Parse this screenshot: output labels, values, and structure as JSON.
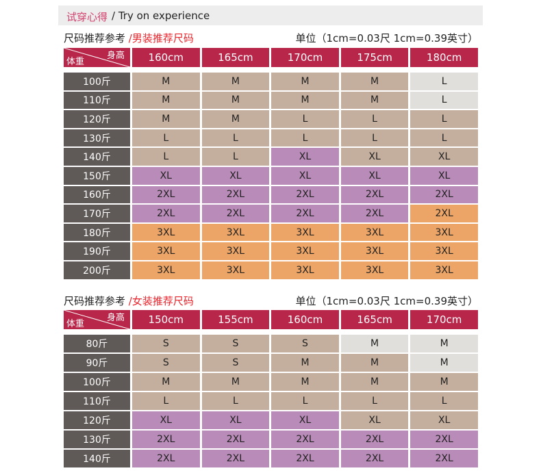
{
  "banner": {
    "cn": "试穿心得",
    "en": "/ Try on experience"
  },
  "men": {
    "title": "尺码推荐参考",
    "subtitle": "/男装推荐尺码",
    "unit": "单位（1cm=0.03尺 1cm=0.39英寸）",
    "corner_height": "身高",
    "corner_weight": "体重",
    "heights": [
      "160cm",
      "165cm",
      "170cm",
      "175cm",
      "180cm"
    ],
    "rows": [
      {
        "weight": "100斤",
        "sizes": [
          "M",
          "M",
          "M",
          "M",
          "L"
        ],
        "tones": [
          "b",
          "b",
          "b",
          "b",
          "g"
        ]
      },
      {
        "weight": "110斤",
        "sizes": [
          "M",
          "M",
          "M",
          "M",
          "L"
        ],
        "tones": [
          "b",
          "b",
          "b",
          "b",
          "g"
        ]
      },
      {
        "weight": "120斤",
        "sizes": [
          "M",
          "M",
          "L",
          "L",
          "L"
        ],
        "tones": [
          "b",
          "b",
          "b",
          "b",
          "b"
        ]
      },
      {
        "weight": "130斤",
        "sizes": [
          "L",
          "L",
          "L",
          "L",
          "L"
        ],
        "tones": [
          "b",
          "b",
          "b",
          "b",
          "b"
        ]
      },
      {
        "weight": "140斤",
        "sizes": [
          "L",
          "L",
          "XL",
          "XL",
          "XL"
        ],
        "tones": [
          "b",
          "b",
          "p",
          "b",
          "b"
        ]
      },
      {
        "weight": "150斤",
        "sizes": [
          "XL",
          "XL",
          "XL",
          "XL",
          "XL"
        ],
        "tones": [
          "p",
          "p",
          "p",
          "p",
          "p"
        ]
      },
      {
        "weight": "160斤",
        "sizes": [
          "2XL",
          "2XL",
          "2XL",
          "2XL",
          "2XL"
        ],
        "tones": [
          "p",
          "p",
          "p",
          "p",
          "p"
        ]
      },
      {
        "weight": "170斤",
        "sizes": [
          "2XL",
          "2XL",
          "2XL",
          "2XL",
          "2XL"
        ],
        "tones": [
          "p",
          "p",
          "p",
          "p",
          "o"
        ]
      },
      {
        "weight": "180斤",
        "sizes": [
          "3XL",
          "3XL",
          "3XL",
          "3XL",
          "3XL"
        ],
        "tones": [
          "o",
          "o",
          "o",
          "o",
          "o"
        ]
      },
      {
        "weight": "190斤",
        "sizes": [
          "3XL",
          "3XL",
          "3XL",
          "3XL",
          "3XL"
        ],
        "tones": [
          "o",
          "o",
          "o",
          "o",
          "o"
        ]
      },
      {
        "weight": "200斤",
        "sizes": [
          "3XL",
          "3XL",
          "3XL",
          "3XL",
          "3XL"
        ],
        "tones": [
          "o",
          "o",
          "o",
          "o",
          "o"
        ]
      }
    ]
  },
  "women": {
    "title": "尺码推荐参考",
    "subtitle": "/女装推荐尺码",
    "unit": "单位（1cm=0.03尺 1cm=0.39英寸）",
    "corner_height": "身高",
    "corner_weight": "体重",
    "heights": [
      "150cm",
      "155cm",
      "160cm",
      "165cm",
      "170cm"
    ],
    "rows": [
      {
        "weight": "80斤",
        "sizes": [
          "S",
          "S",
          "S",
          "M",
          "M"
        ],
        "tones": [
          "b",
          "b",
          "b",
          "g",
          "g"
        ]
      },
      {
        "weight": "90斤",
        "sizes": [
          "S",
          "S",
          "M",
          "M",
          "M"
        ],
        "tones": [
          "b",
          "b",
          "b",
          "b",
          "g"
        ]
      },
      {
        "weight": "100斤",
        "sizes": [
          "M",
          "M",
          "M",
          "M",
          "M"
        ],
        "tones": [
          "b",
          "b",
          "b",
          "b",
          "b"
        ]
      },
      {
        "weight": "110斤",
        "sizes": [
          "L",
          "L",
          "L",
          "L",
          "L"
        ],
        "tones": [
          "b",
          "b",
          "b",
          "b",
          "b"
        ]
      },
      {
        "weight": "120斤",
        "sizes": [
          "XL",
          "XL",
          "XL",
          "XL",
          "XL"
        ],
        "tones": [
          "p",
          "p",
          "p",
          "b",
          "b"
        ]
      },
      {
        "weight": "130斤",
        "sizes": [
          "2XL",
          "2XL",
          "2XL",
          "2XL",
          "2XL"
        ],
        "tones": [
          "p",
          "p",
          "p",
          "p",
          "p"
        ]
      },
      {
        "weight": "140斤",
        "sizes": [
          "2XL",
          "2XL",
          "2XL",
          "2XL",
          "2XL"
        ],
        "tones": [
          "p",
          "p",
          "p",
          "p",
          "p"
        ]
      }
    ]
  },
  "colors": {
    "header": "#b8264a",
    "label": "#5f5a58",
    "b": "#c4ae9d",
    "g": "#e0dfdb",
    "p": "#b98bb8",
    "o": "#eca566"
  }
}
